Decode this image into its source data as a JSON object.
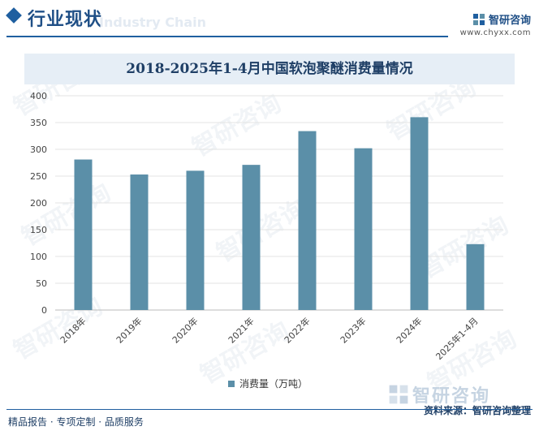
{
  "header": {
    "title": "行业现状",
    "ghost_text": "Industry Chain"
  },
  "brand": {
    "name": "智研咨询",
    "url": "www.chyxx.com"
  },
  "watermark": "智研咨询",
  "chart_data": {
    "type": "bar",
    "title": "2018-2025年1-4月中国软泡聚醚消费量情况",
    "categories": [
      "2018年",
      "2019年",
      "2020年",
      "2021年",
      "2022年",
      "2023年",
      "2024年",
      "2025年1-4月"
    ],
    "series": [
      {
        "name": "消费量（万吨）",
        "values": [
          281,
          253,
          260,
          271,
          334,
          302,
          360,
          123
        ]
      }
    ],
    "ylim": [
      0,
      400
    ],
    "yticks": [
      0,
      50,
      100,
      150,
      200,
      250,
      300,
      350,
      400
    ],
    "xlabel": "",
    "ylabel": "",
    "grid": true,
    "legend_position": "bottom-center",
    "bar_color": "#5b8fa8"
  },
  "footer": {
    "left": "精品报告 · 专项定制 · 品质服务",
    "source": "资料来源：智研咨询整理",
    "brand_big": "智研咨询"
  }
}
